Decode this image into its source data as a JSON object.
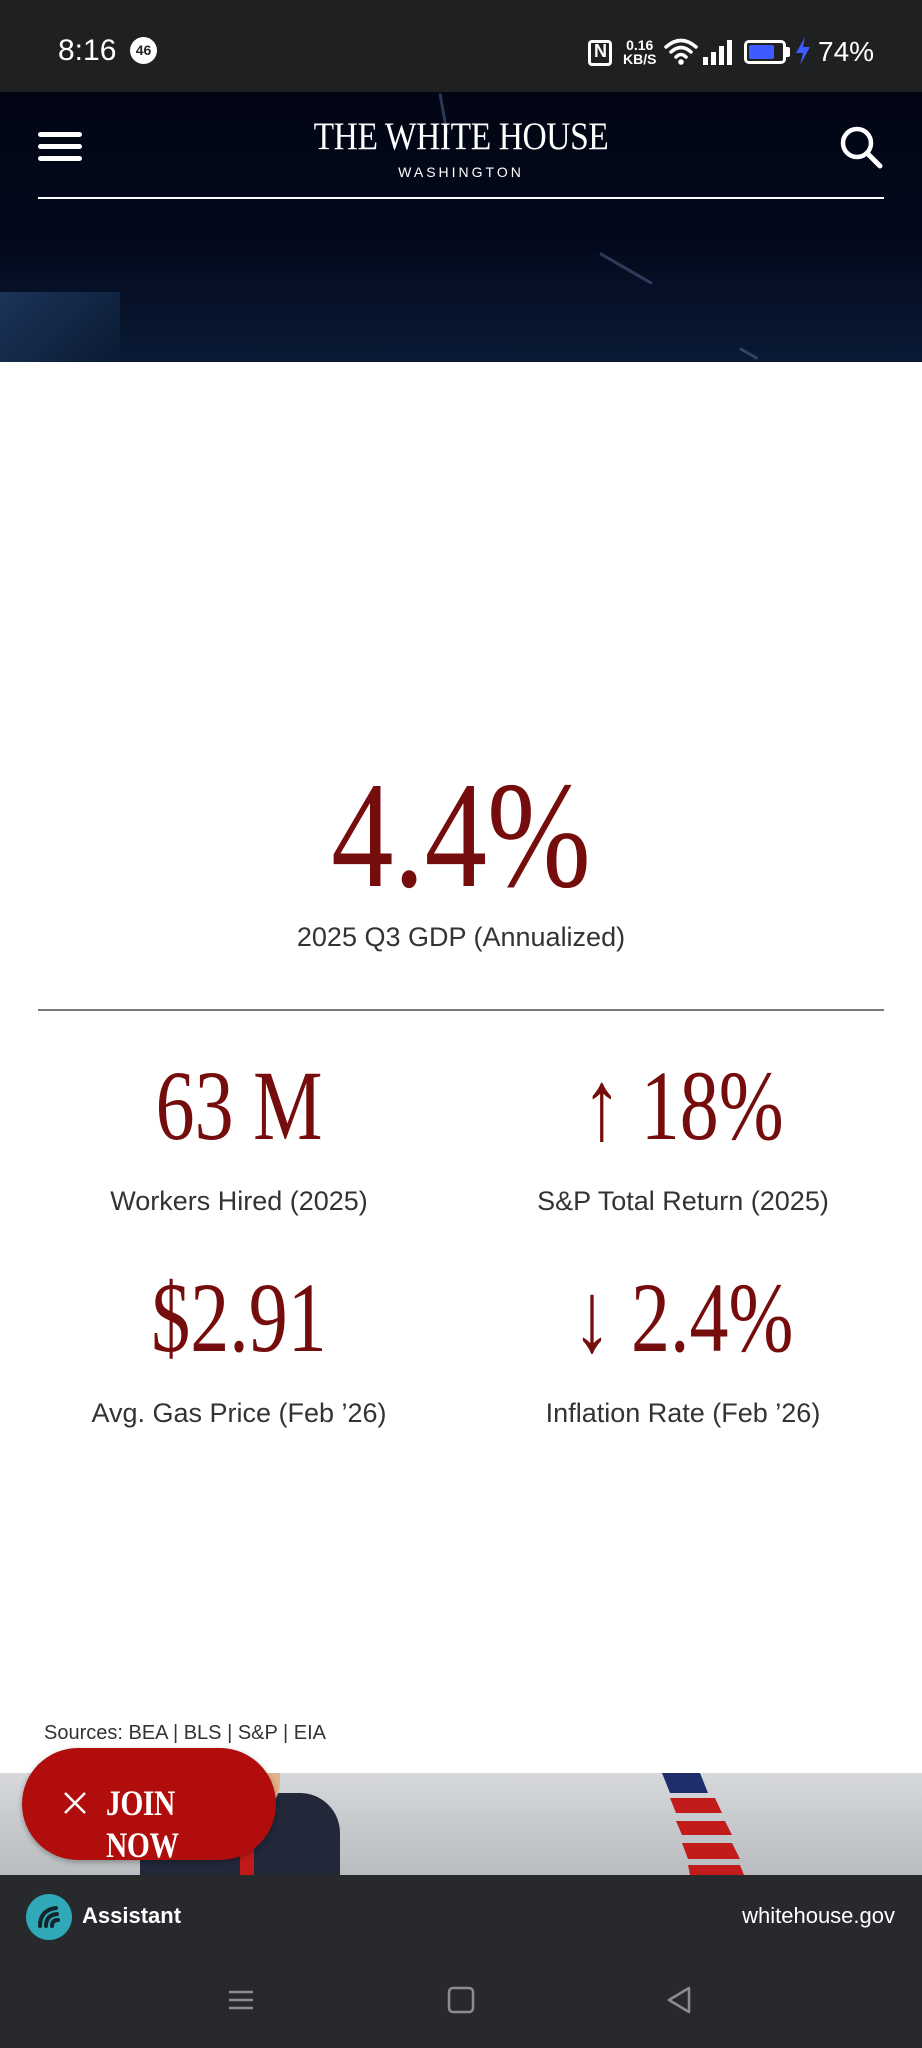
{
  "status_bar": {
    "time": "8:16",
    "notification_count": "46",
    "net_speed_value": "0.16",
    "net_speed_unit": "KB/S",
    "battery_percent": "74%",
    "battery_level": 0.74,
    "icons": [
      "nfc-icon",
      "wifi-icon",
      "signal-icon",
      "battery-icon",
      "charging-icon"
    ]
  },
  "header": {
    "logo_title": "THE WHITE HOUSE",
    "logo_subtitle": "WASHINGTON",
    "menu_icon": "hamburger-menu-icon",
    "search_icon": "search-icon"
  },
  "stats": {
    "headline": {
      "value": "4.4%",
      "label": "2025 Q3 GDP (Annualized)"
    },
    "items": [
      {
        "value": "63 M",
        "label": "Workers Hired (2025)"
      },
      {
        "value": "↑ 18%",
        "label": "S&P Total Return (2025)"
      },
      {
        "value": "$2.91",
        "label": "Avg. Gas Price (Feb ’26)"
      },
      {
        "value": "↓ 2.4%",
        "label": "Inflation Rate (Feb ’26)"
      }
    ]
  },
  "sources": "Sources: BEA | BLS | S&P | EIA",
  "join_button": {
    "label": "JOIN NOW",
    "icon": "close-icon"
  },
  "browser_bar": {
    "assistant_label": "Assistant",
    "domain": "whitehouse.gov"
  },
  "nav_bar": {
    "icons": [
      "recents-icon",
      "home-icon",
      "back-icon"
    ]
  },
  "colors": {
    "accent": "#740d0c",
    "join_button": "#b00d0c",
    "header_bg": "#020614",
    "assistant_icon": "#2fa8b8"
  }
}
